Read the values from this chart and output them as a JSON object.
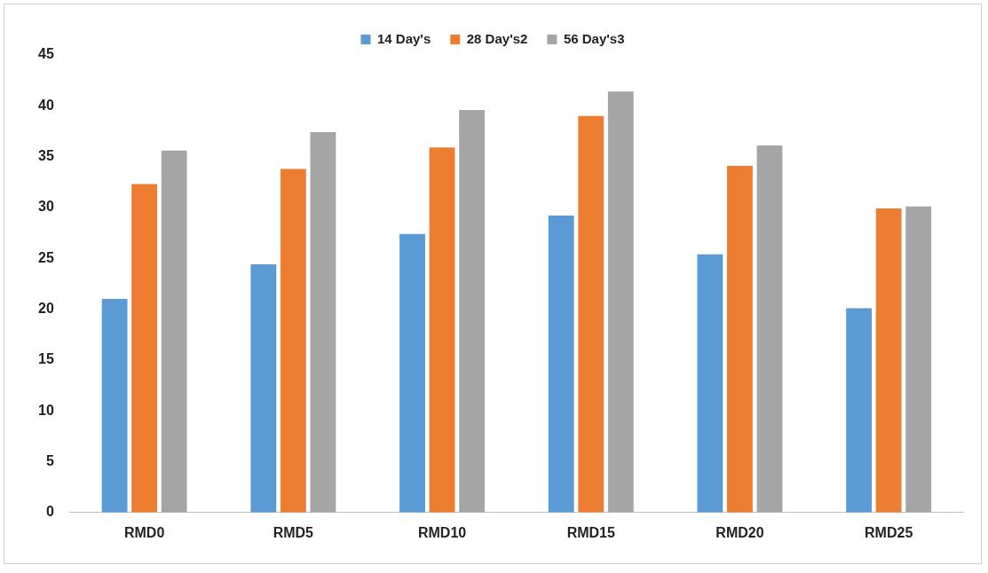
{
  "chart_data": {
    "type": "bar",
    "categories": [
      "RMD0",
      "RMD5",
      "RMD10",
      "RMD15",
      "RMD20",
      "RMD25"
    ],
    "series": [
      {
        "name": "14 Day's",
        "color": "#5b9bd5",
        "values": [
          21.0,
          24.4,
          27.4,
          29.2,
          25.4,
          20.1
        ]
      },
      {
        "name": "28 Day's2",
        "color": "#ed7d31",
        "values": [
          32.3,
          33.8,
          35.9,
          39.0,
          34.1,
          29.9
        ]
      },
      {
        "name": "56 Day's3",
        "color": "#a5a5a5",
        "values": [
          35.6,
          37.4,
          39.6,
          41.4,
          36.1,
          30.1
        ]
      }
    ],
    "ylim": [
      0,
      45
    ],
    "yticks": [
      0,
      5,
      10,
      15,
      20,
      25,
      30,
      35,
      40,
      45
    ],
    "grid": false,
    "legend": "top"
  }
}
